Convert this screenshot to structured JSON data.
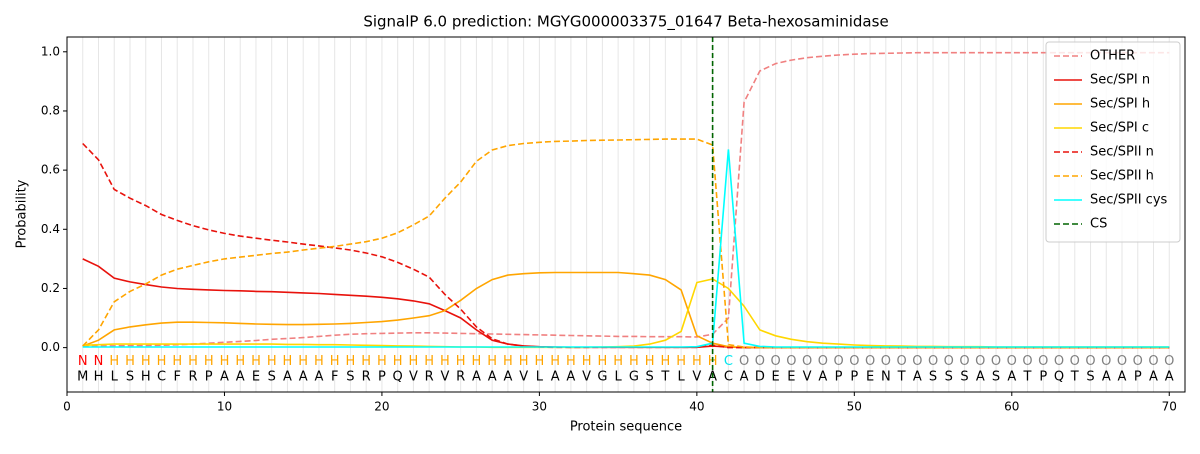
{
  "chart_data": {
    "type": "line",
    "title": "SignalP 6.0 prediction: MGYG000003375_01647 Beta-hexosaminidase",
    "x_label": "Protein sequence",
    "y_label": "Probability",
    "x": [
      1,
      2,
      3,
      4,
      5,
      6,
      7,
      8,
      9,
      10,
      11,
      12,
      13,
      14,
      15,
      16,
      17,
      18,
      19,
      20,
      21,
      22,
      23,
      24,
      25,
      26,
      27,
      28,
      29,
      30,
      31,
      32,
      33,
      34,
      35,
      36,
      37,
      38,
      39,
      40,
      41,
      42,
      43,
      44,
      45,
      46,
      47,
      48,
      49,
      50,
      51,
      52,
      53,
      54,
      55,
      56,
      57,
      58,
      59,
      60,
      61,
      62,
      63,
      64,
      65,
      66,
      67,
      68,
      69,
      70
    ],
    "sequence": [
      "M",
      "H",
      "L",
      "S",
      "H",
      "C",
      "F",
      "R",
      "P",
      "A",
      "A",
      "E",
      "S",
      "A",
      "A",
      "A",
      "F",
      "S",
      "R",
      "P",
      "Q",
      "V",
      "R",
      "V",
      "R",
      "A",
      "A",
      "A",
      "V",
      "L",
      "A",
      "A",
      "V",
      "G",
      "L",
      "G",
      "S",
      "T",
      "L",
      "V",
      "A",
      "C",
      "A",
      "D",
      "E",
      "E",
      "V",
      "A",
      "P",
      "P",
      "E",
      "N",
      "T",
      "A",
      "S",
      "S",
      "S",
      "A",
      "S",
      "A",
      "T",
      "P",
      "Q",
      "T",
      "S",
      "A",
      "A",
      "P",
      "A",
      "A"
    ],
    "labels": [
      "N",
      "N",
      "H",
      "H",
      "H",
      "H",
      "H",
      "H",
      "H",
      "H",
      "H",
      "H",
      "H",
      "H",
      "H",
      "H",
      "H",
      "H",
      "H",
      "H",
      "H",
      "H",
      "H",
      "H",
      "H",
      "H",
      "H",
      "H",
      "H",
      "H",
      "H",
      "H",
      "H",
      "H",
      "H",
      "H",
      "H",
      "H",
      "H",
      "H",
      "H",
      "C",
      "O",
      "O",
      "O",
      "O",
      "O",
      "O",
      "O",
      "O",
      "O",
      "O",
      "O",
      "O",
      "O",
      "O",
      "O",
      "O",
      "O",
      "O",
      "O",
      "O",
      "O",
      "O",
      "O",
      "O",
      "O",
      "O",
      "O",
      "O"
    ],
    "label_colors": {
      "N": "#ff0000",
      "H": "#ffa500",
      "C": "#00e5ee",
      "O": "#808080"
    },
    "series": [
      {
        "name": "OTHER",
        "color": "#f08080",
        "dash": true,
        "values": [
          0.005,
          0.006,
          0.006,
          0.007,
          0.007,
          0.008,
          0.01,
          0.012,
          0.015,
          0.018,
          0.021,
          0.024,
          0.028,
          0.031,
          0.034,
          0.038,
          0.042,
          0.045,
          0.047,
          0.048,
          0.049,
          0.05,
          0.05,
          0.049,
          0.048,
          0.047,
          0.046,
          0.045,
          0.044,
          0.043,
          0.042,
          0.041,
          0.04,
          0.039,
          0.038,
          0.038,
          0.037,
          0.037,
          0.037,
          0.036,
          0.045,
          0.1,
          0.83,
          0.935,
          0.96,
          0.972,
          0.98,
          0.985,
          0.989,
          0.992,
          0.994,
          0.995,
          0.996,
          0.997,
          0.997,
          0.997,
          0.997,
          0.997,
          0.997,
          0.997,
          0.997,
          0.997,
          0.997,
          0.997,
          0.997,
          0.997,
          0.997,
          0.997,
          0.997,
          0.997
        ]
      },
      {
        "name": "Sec/SPI n",
        "color": "#e8120c",
        "dash": false,
        "values": [
          0.3,
          0.275,
          0.235,
          0.222,
          0.213,
          0.205,
          0.2,
          0.197,
          0.195,
          0.193,
          0.192,
          0.19,
          0.189,
          0.187,
          0.185,
          0.183,
          0.18,
          0.177,
          0.174,
          0.17,
          0.165,
          0.158,
          0.148,
          0.125,
          0.1,
          0.06,
          0.025,
          0.012,
          0.006,
          0.003,
          0.002,
          0.001,
          0.001,
          0.001,
          0.001,
          0.001,
          0.001,
          0.001,
          0.001,
          0.001,
          0.005,
          0.002,
          0,
          0,
          0,
          0,
          0,
          0,
          0,
          0,
          0,
          0,
          0,
          0,
          0,
          0,
          0,
          0,
          0,
          0,
          0,
          0,
          0,
          0,
          0,
          0,
          0,
          0,
          0,
          0
        ]
      },
      {
        "name": "Sec/SPI h",
        "color": "#ffa500",
        "dash": false,
        "values": [
          0.005,
          0.025,
          0.06,
          0.07,
          0.077,
          0.083,
          0.086,
          0.086,
          0.085,
          0.084,
          0.082,
          0.08,
          0.079,
          0.078,
          0.078,
          0.079,
          0.08,
          0.082,
          0.085,
          0.088,
          0.093,
          0.1,
          0.108,
          0.125,
          0.16,
          0.2,
          0.23,
          0.245,
          0.25,
          0.253,
          0.254,
          0.254,
          0.254,
          0.254,
          0.254,
          0.25,
          0.245,
          0.23,
          0.195,
          0.04,
          0.015,
          0.003,
          0,
          0,
          0,
          0,
          0,
          0,
          0,
          0,
          0,
          0,
          0,
          0,
          0,
          0,
          0,
          0,
          0,
          0,
          0,
          0,
          0,
          0,
          0,
          0,
          0,
          0,
          0,
          0
        ]
      },
      {
        "name": "Sec/SPI c",
        "color": "#ffd700",
        "dash": false,
        "values": [
          0.008,
          0.01,
          0.012,
          0.012,
          0.012,
          0.012,
          0.012,
          0.012,
          0.012,
          0.012,
          0.012,
          0.012,
          0.012,
          0.011,
          0.011,
          0.01,
          0.01,
          0.009,
          0.008,
          0.007,
          0.006,
          0.005,
          0.004,
          0.003,
          0.002,
          0.002,
          0.001,
          0.001,
          0.001,
          0.001,
          0.001,
          0.001,
          0.001,
          0.002,
          0.003,
          0.005,
          0.012,
          0.025,
          0.055,
          0.22,
          0.232,
          0.2,
          0.14,
          0.06,
          0.04,
          0.028,
          0.02,
          0.015,
          0.012,
          0.009,
          0.007,
          0.006,
          0.005,
          0.004,
          0.004,
          0.003,
          0.003,
          0.003,
          0.002,
          0.002,
          0.002,
          0.002,
          0.002,
          0.002,
          0.002,
          0.002,
          0.002,
          0.002,
          0.002,
          0.002
        ]
      },
      {
        "name": "Sec/SPII n",
        "color": "#e8120c",
        "dash": true,
        "values": [
          0.69,
          0.635,
          0.535,
          0.505,
          0.48,
          0.45,
          0.43,
          0.412,
          0.398,
          0.386,
          0.377,
          0.37,
          0.363,
          0.357,
          0.35,
          0.344,
          0.337,
          0.33,
          0.32,
          0.307,
          0.288,
          0.265,
          0.238,
          0.18,
          0.13,
          0.07,
          0.03,
          0.012,
          0.005,
          0.002,
          0.001,
          0.001,
          0.001,
          0.001,
          0.001,
          0.001,
          0.001,
          0.001,
          0.001,
          0.001,
          0.008,
          0,
          0,
          0,
          0,
          0,
          0,
          0,
          0,
          0,
          0,
          0,
          0,
          0,
          0,
          0,
          0,
          0,
          0,
          0,
          0,
          0,
          0,
          0,
          0,
          0,
          0,
          0,
          0,
          0
        ]
      },
      {
        "name": "Sec/SPII h",
        "color": "#ffa500",
        "dash": true,
        "values": [
          0.005,
          0.06,
          0.155,
          0.19,
          0.215,
          0.245,
          0.265,
          0.278,
          0.29,
          0.3,
          0.306,
          0.312,
          0.318,
          0.323,
          0.33,
          0.336,
          0.342,
          0.35,
          0.358,
          0.37,
          0.388,
          0.415,
          0.445,
          0.505,
          0.56,
          0.63,
          0.668,
          0.683,
          0.69,
          0.694,
          0.697,
          0.698,
          0.7,
          0.701,
          0.702,
          0.703,
          0.704,
          0.705,
          0.705,
          0.705,
          0.685,
          0.01,
          0.002,
          0,
          0,
          0,
          0,
          0,
          0,
          0,
          0,
          0,
          0,
          0,
          0,
          0,
          0,
          0,
          0,
          0,
          0,
          0,
          0,
          0,
          0,
          0,
          0,
          0,
          0,
          0
        ]
      },
      {
        "name": "Sec/SPII cys",
        "color": "#00ffff",
        "dash": false,
        "values": [
          0.002,
          0.002,
          0.002,
          0.002,
          0.002,
          0.002,
          0.002,
          0.002,
          0.002,
          0.002,
          0.002,
          0.002,
          0.002,
          0.002,
          0.002,
          0.002,
          0.002,
          0.002,
          0.002,
          0.002,
          0.002,
          0.002,
          0.002,
          0.002,
          0.002,
          0.002,
          0.002,
          0.002,
          0.002,
          0.002,
          0.002,
          0.002,
          0.002,
          0.002,
          0.002,
          0.002,
          0.002,
          0.002,
          0.002,
          0.003,
          0.015,
          0.67,
          0.015,
          0.004,
          0.002,
          0.002,
          0.002,
          0.002,
          0.002,
          0.002,
          0.002,
          0.002,
          0.002,
          0.002,
          0.002,
          0.002,
          0.002,
          0.002,
          0.002,
          0.002,
          0.002,
          0.002,
          0.002,
          0.002,
          0.002,
          0.002,
          0.002,
          0.002,
          0.002,
          0.002
        ]
      }
    ],
    "cs": {
      "name": "CS",
      "x": 41,
      "color": "#006400"
    },
    "xlim": [
      0,
      71
    ],
    "ylim": [
      -0.15,
      1.05
    ],
    "xticks": [
      0,
      10,
      20,
      30,
      40,
      50,
      60,
      70
    ],
    "yticks": [
      {
        "value": 0,
        "label": "0.0"
      },
      {
        "value": 0.2,
        "label": "0.2"
      },
      {
        "value": 0.4,
        "label": "0.4"
      },
      {
        "value": 0.6,
        "label": "0.6"
      },
      {
        "value": 0.8,
        "label": "0.8"
      },
      {
        "value": 1,
        "label": "1.0"
      }
    ],
    "grid": true,
    "legend": "upper right"
  }
}
